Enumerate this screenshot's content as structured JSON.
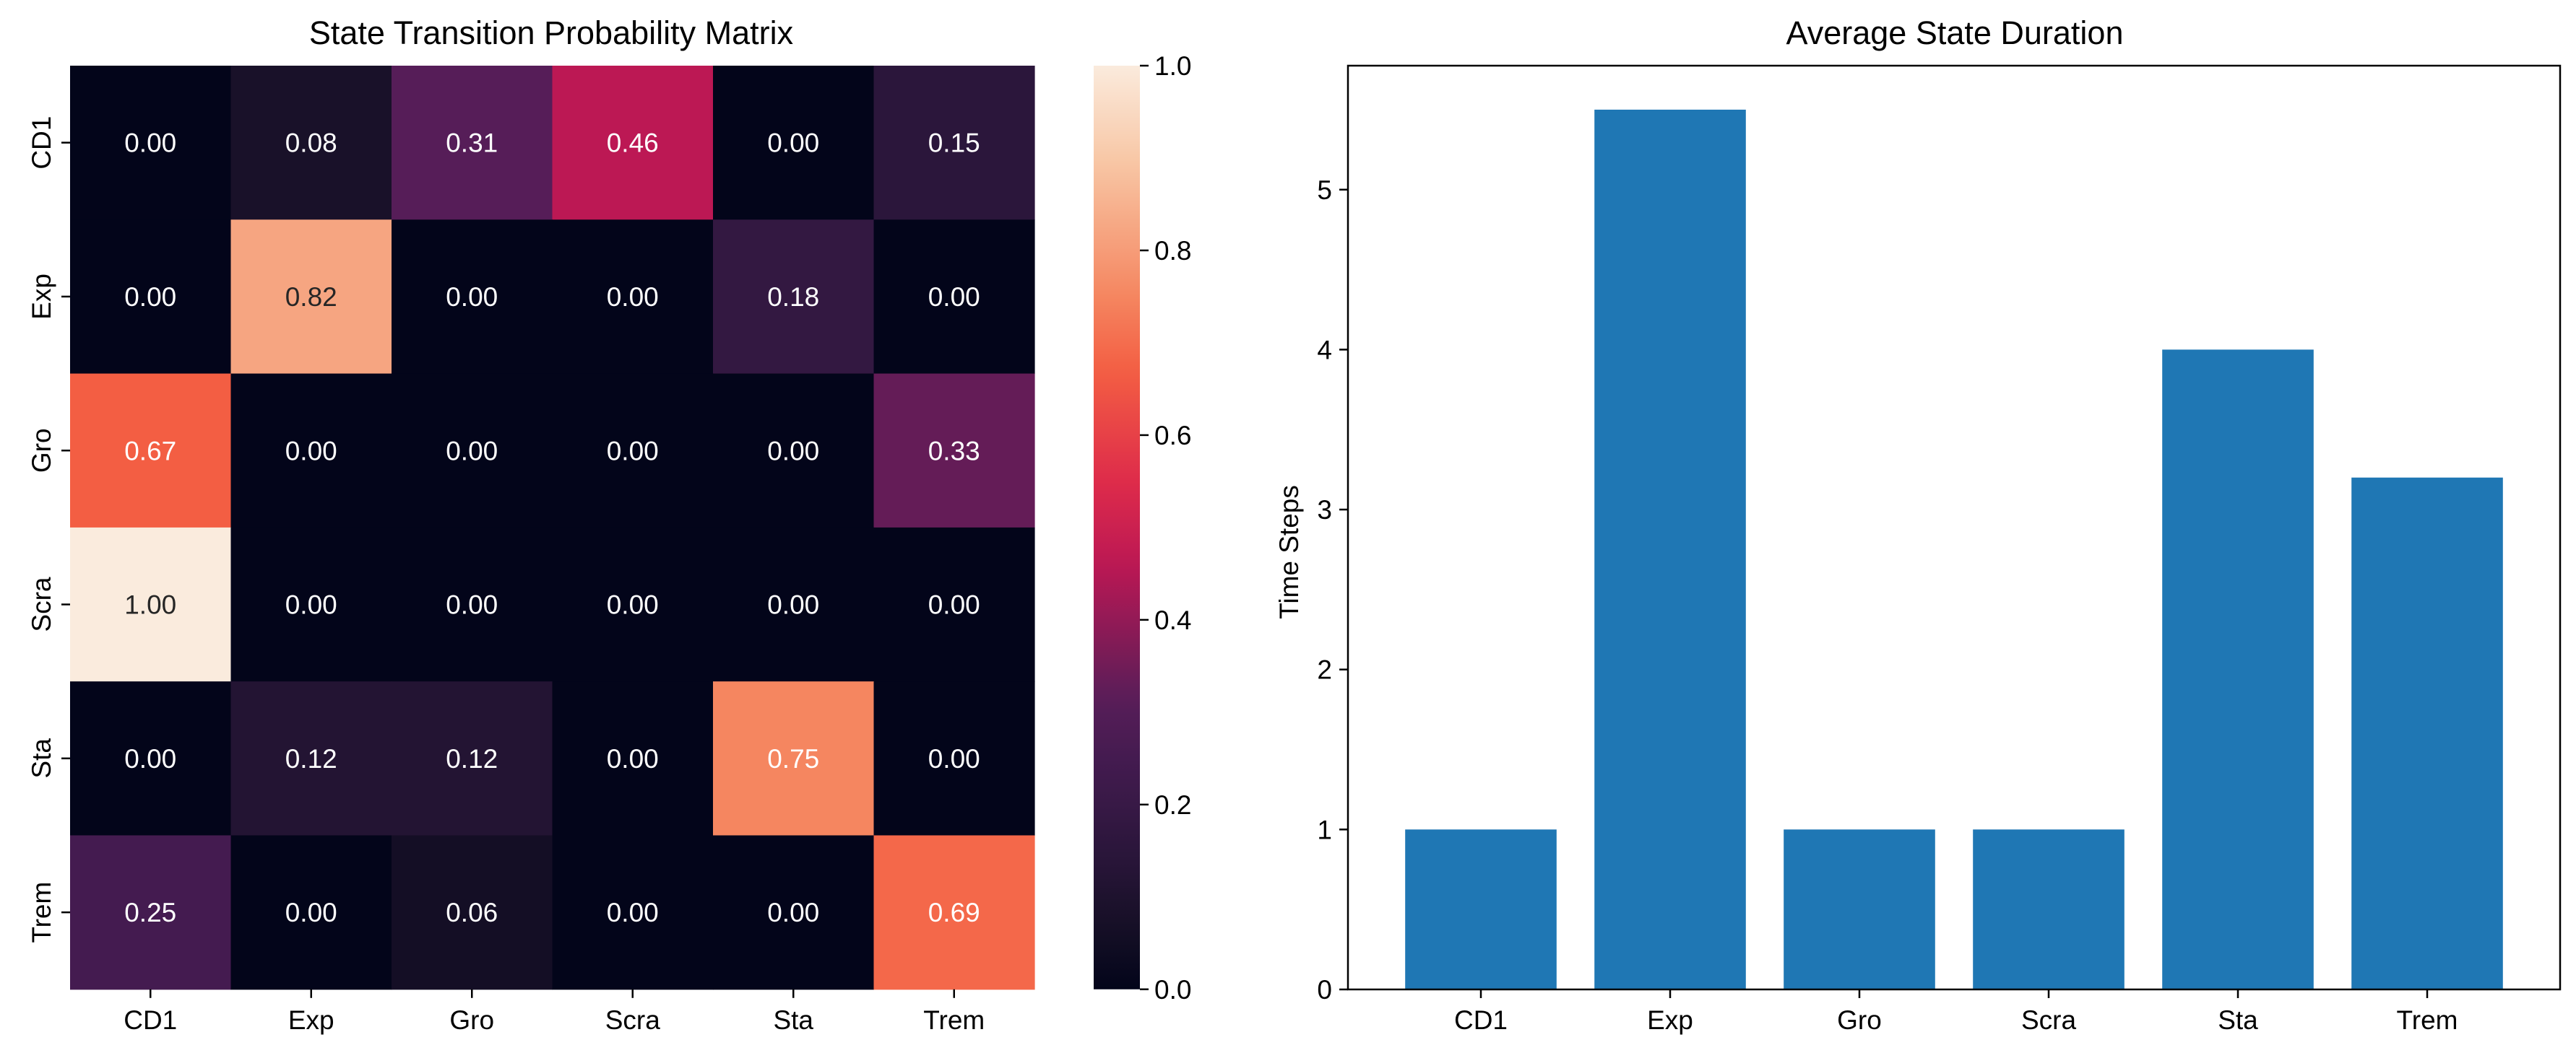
{
  "chart_data": [
    {
      "type": "heatmap",
      "title": "State Transition Probability Matrix",
      "xlabel": "",
      "ylabel": "",
      "x_categories": [
        "CD1",
        "Exp",
        "Gro",
        "Scra",
        "Sta",
        "Trem"
      ],
      "y_categories": [
        "CD1",
        "Exp",
        "Gro",
        "Scra",
        "Sta",
        "Trem"
      ],
      "values": [
        [
          0.0,
          0.08,
          0.31,
          0.46,
          0.0,
          0.15
        ],
        [
          0.0,
          0.82,
          0.0,
          0.0,
          0.18,
          0.0
        ],
        [
          0.67,
          0.0,
          0.0,
          0.0,
          0.0,
          0.33
        ],
        [
          1.0,
          0.0,
          0.0,
          0.0,
          0.0,
          0.0
        ],
        [
          0.0,
          0.12,
          0.12,
          0.0,
          0.75,
          0.0
        ],
        [
          0.25,
          0.0,
          0.06,
          0.0,
          0.0,
          0.69
        ]
      ],
      "value_labels": [
        [
          "0.00",
          "0.08",
          "0.31",
          "0.46",
          "0.00",
          "0.15"
        ],
        [
          "0.00",
          "0.82",
          "0.00",
          "0.00",
          "0.18",
          "0.00"
        ],
        [
          "0.67",
          "0.00",
          "0.00",
          "0.00",
          "0.00",
          "0.33"
        ],
        [
          "1.00",
          "0.00",
          "0.00",
          "0.00",
          "0.00",
          "0.00"
        ],
        [
          "0.00",
          "0.12",
          "0.12",
          "0.00",
          "0.75",
          "0.00"
        ],
        [
          "0.25",
          "0.00",
          "0.06",
          "0.00",
          "0.00",
          "0.69"
        ]
      ],
      "colormap": "rocket",
      "colorbar": {
        "range": [
          0.0,
          1.0
        ],
        "ticks": [
          0.0,
          0.2,
          0.4,
          0.6,
          0.8,
          1.0
        ],
        "tick_labels": [
          "0.0",
          "0.2",
          "0.4",
          "0.6",
          "0.8",
          "1.0"
        ]
      },
      "annotation_colors": {
        "on_dark": "#ffffff",
        "on_light": "#262626"
      }
    },
    {
      "type": "bar",
      "title": "Average State Duration",
      "xlabel": "",
      "ylabel": "Time Steps",
      "categories": [
        "CD1",
        "Exp",
        "Gro",
        "Scra",
        "Sta",
        "Trem"
      ],
      "values": [
        1.0,
        5.5,
        1.0,
        1.0,
        4.0,
        3.2
      ],
      "ylim": [
        0,
        5.775
      ],
      "yticks": [
        0,
        1,
        2,
        3,
        4,
        5
      ],
      "ytick_labels": [
        "0",
        "1",
        "2",
        "3",
        "4",
        "5"
      ],
      "bar_color": "#1f77b4",
      "grid": false
    }
  ]
}
